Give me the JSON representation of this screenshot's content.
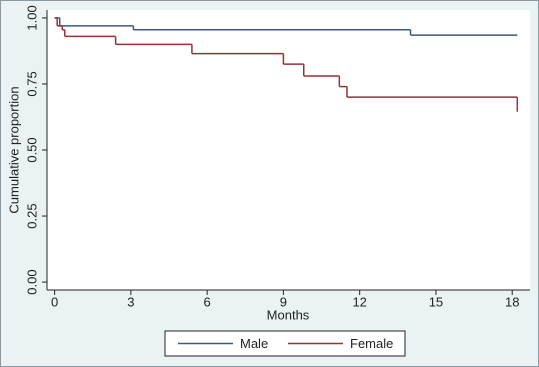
{
  "chart_data": {
    "type": "step",
    "x_label": "Months",
    "y_label": "Cumulative proportion",
    "xlim": [
      -0.3,
      18.7
    ],
    "ylim": [
      -0.03,
      1.03
    ],
    "xticks": [
      0,
      3,
      6,
      9,
      12,
      15,
      18
    ],
    "yticks": [
      {
        "value": 0,
        "label": "0.00"
      },
      {
        "value": 0.25,
        "label": "0.25"
      },
      {
        "value": 0.5,
        "label": "0.50"
      },
      {
        "value": 0.75,
        "label": "0.75"
      },
      {
        "value": 1,
        "label": "1.00"
      }
    ],
    "grid": false,
    "legend": "bottom",
    "series": [
      {
        "name": "Male",
        "color": "#3b5a7c",
        "x": [
          0,
          0.2,
          3.1,
          14,
          18.2
        ],
        "values": [
          1,
          0.97,
          0.955,
          0.935,
          0.935
        ]
      },
      {
        "name": "Female",
        "color": "#943338",
        "x": [
          0,
          0.1,
          0.3,
          0.4,
          2.4,
          5.4,
          9,
          9.8,
          11.2,
          11.5,
          18.2
        ],
        "values": [
          1,
          0.97,
          0.955,
          0.93,
          0.9,
          0.865,
          0.825,
          0.78,
          0.74,
          0.7,
          0.645
        ]
      }
    ]
  }
}
